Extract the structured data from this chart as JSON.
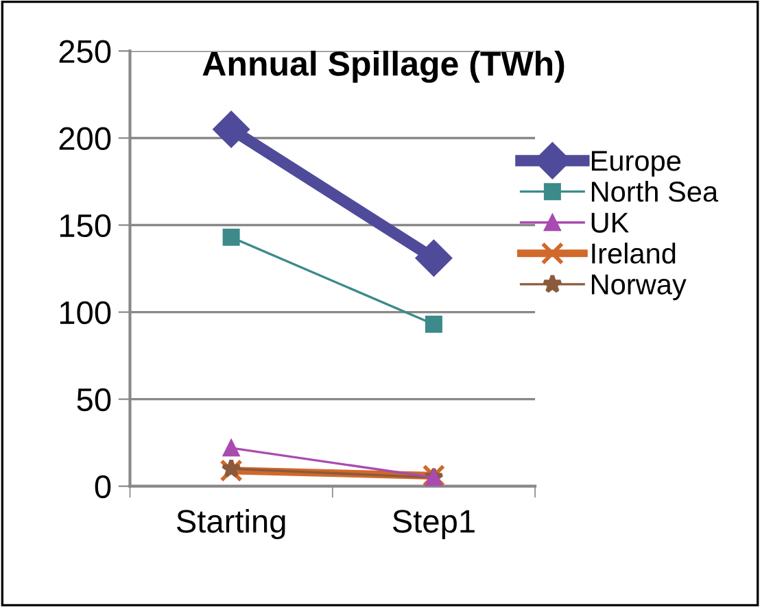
{
  "chart_data": {
    "type": "line",
    "title": "Annual Spillage (TWh)",
    "categories": [
      "Starting",
      "Step1"
    ],
    "series": [
      {
        "name": "Europe",
        "color": "#4f4b9a",
        "values": [
          205,
          131
        ],
        "marker": "diamond"
      },
      {
        "name": "North Sea",
        "color": "#3c8a8a",
        "values": [
          143,
          93
        ],
        "marker": "square"
      },
      {
        "name": "UK",
        "color": "#a94bb0",
        "values": [
          22,
          5
        ],
        "marker": "triangle"
      },
      {
        "name": "Ireland",
        "color": "#d0692a",
        "values": [
          9,
          6
        ],
        "marker": "cross"
      },
      {
        "name": "Norway",
        "color": "#8b5a3c",
        "values": [
          10,
          5
        ],
        "marker": "star"
      }
    ],
    "ylim": [
      0,
      250
    ],
    "yticks": [
      0,
      50,
      100,
      150,
      200,
      250
    ],
    "grid": "y",
    "legend": "right"
  }
}
